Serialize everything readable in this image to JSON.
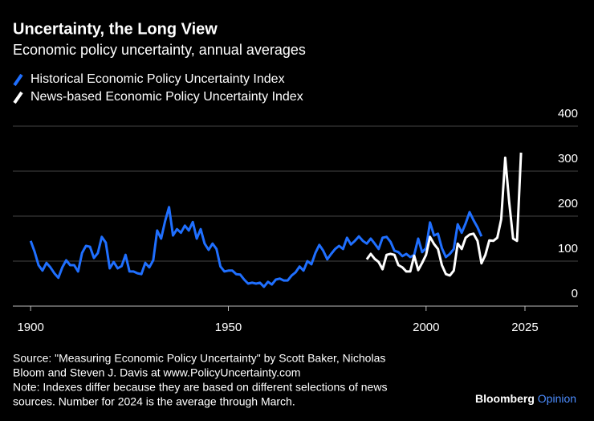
{
  "chart_data": {
    "type": "line",
    "title": "Uncertainty, the Long View",
    "subtitle": "Economic policy uncertainty, annual averages",
    "series": [
      {
        "name": "Historical Economic Policy Uncertainty Index",
        "color": "#1f6fff",
        "x": [
          1900,
          1901,
          1902,
          1903,
          1904,
          1905,
          1906,
          1907,
          1908,
          1909,
          1910,
          1911,
          1912,
          1913,
          1914,
          1915,
          1916,
          1917,
          1918,
          1919,
          1920,
          1921,
          1922,
          1923,
          1924,
          1925,
          1926,
          1927,
          1928,
          1929,
          1930,
          1931,
          1932,
          1933,
          1934,
          1935,
          1936,
          1937,
          1938,
          1939,
          1940,
          1941,
          1942,
          1943,
          1944,
          1945,
          1946,
          1947,
          1948,
          1949,
          1950,
          1951,
          1952,
          1953,
          1954,
          1955,
          1956,
          1957,
          1958,
          1959,
          1960,
          1961,
          1962,
          1963,
          1964,
          1965,
          1966,
          1967,
          1968,
          1969,
          1970,
          1971,
          1972,
          1973,
          1974,
          1975,
          1976,
          1977,
          1978,
          1979,
          1980,
          1981,
          1982,
          1983,
          1984,
          1985,
          1986,
          1987,
          1988,
          1989,
          1990,
          1991,
          1992,
          1993,
          1994,
          1995,
          1996,
          1997,
          1998,
          1999,
          2000,
          2001,
          2002,
          2003,
          2004,
          2005,
          2006,
          2007,
          2008,
          2009,
          2010,
          2011,
          2012,
          2013,
          2014
        ],
        "values": [
          145,
          121,
          91,
          79,
          96,
          86,
          73,
          63,
          86,
          102,
          91,
          91,
          77,
          118,
          134,
          132,
          107,
          118,
          154,
          141,
          84,
          98,
          84,
          89,
          114,
          77,
          77,
          73,
          71,
          96,
          86,
          102,
          168,
          150,
          189,
          220,
          157,
          171,
          163,
          179,
          168,
          187,
          150,
          171,
          139,
          125,
          139,
          127,
          88,
          77,
          79,
          79,
          71,
          70,
          59,
          50,
          52,
          50,
          52,
          43,
          54,
          48,
          59,
          61,
          57,
          57,
          68,
          75,
          88,
          79,
          100,
          93,
          118,
          136,
          123,
          104,
          116,
          127,
          134,
          127,
          152,
          137,
          145,
          155,
          145,
          139,
          150,
          139,
          127,
          152,
          154,
          143,
          123,
          120,
          111,
          116,
          109,
          114,
          150,
          120,
          129,
          186,
          157,
          161,
          129,
          109,
          116,
          127,
          182,
          163,
          184,
          209,
          191,
          175,
          155
        ]
      },
      {
        "name": "News-based Economic Policy Uncertainty Index",
        "color": "#ffffff",
        "x": [
          1985,
          1986,
          1987,
          1988,
          1989,
          1990,
          1991,
          1992,
          1993,
          1994,
          1995,
          1996,
          1997,
          1998,
          1999,
          2000,
          2001,
          2002,
          2003,
          2004,
          2005,
          2006,
          2007,
          2008,
          2009,
          2010,
          2011,
          2012,
          2013,
          2014,
          2015,
          2016,
          2017,
          2018,
          2019,
          2020,
          2021,
          2022,
          2023,
          2024
        ],
        "values": [
          104,
          116,
          105,
          98,
          82,
          114,
          116,
          114,
          91,
          86,
          77,
          77,
          112,
          80,
          96,
          114,
          154,
          138,
          127,
          91,
          71,
          68,
          79,
          139,
          127,
          152,
          159,
          161,
          145,
          95,
          114,
          146,
          145,
          152,
          193,
          330,
          232,
          150,
          145,
          341
        ]
      }
    ],
    "xlim": [
      1895.5,
      2038.4
    ],
    "xticks": [
      1900,
      1950,
      2000,
      2025
    ],
    "ylim": [
      0,
      400
    ],
    "yticks": [
      0,
      100,
      200,
      300,
      400
    ],
    "grid": true,
    "source": [
      "Source: \"Measuring Economic Policy Uncertainty\" by Scott Baker, Nicholas",
      "Bloom and Steven J. Davis at www.PolicyUncertainty.com",
      "Note: Indexes differ because they are based on different selections of news",
      "sources. Number for 2024 is the average through March."
    ],
    "brand": [
      "Bloomberg",
      "Opinion"
    ]
  }
}
